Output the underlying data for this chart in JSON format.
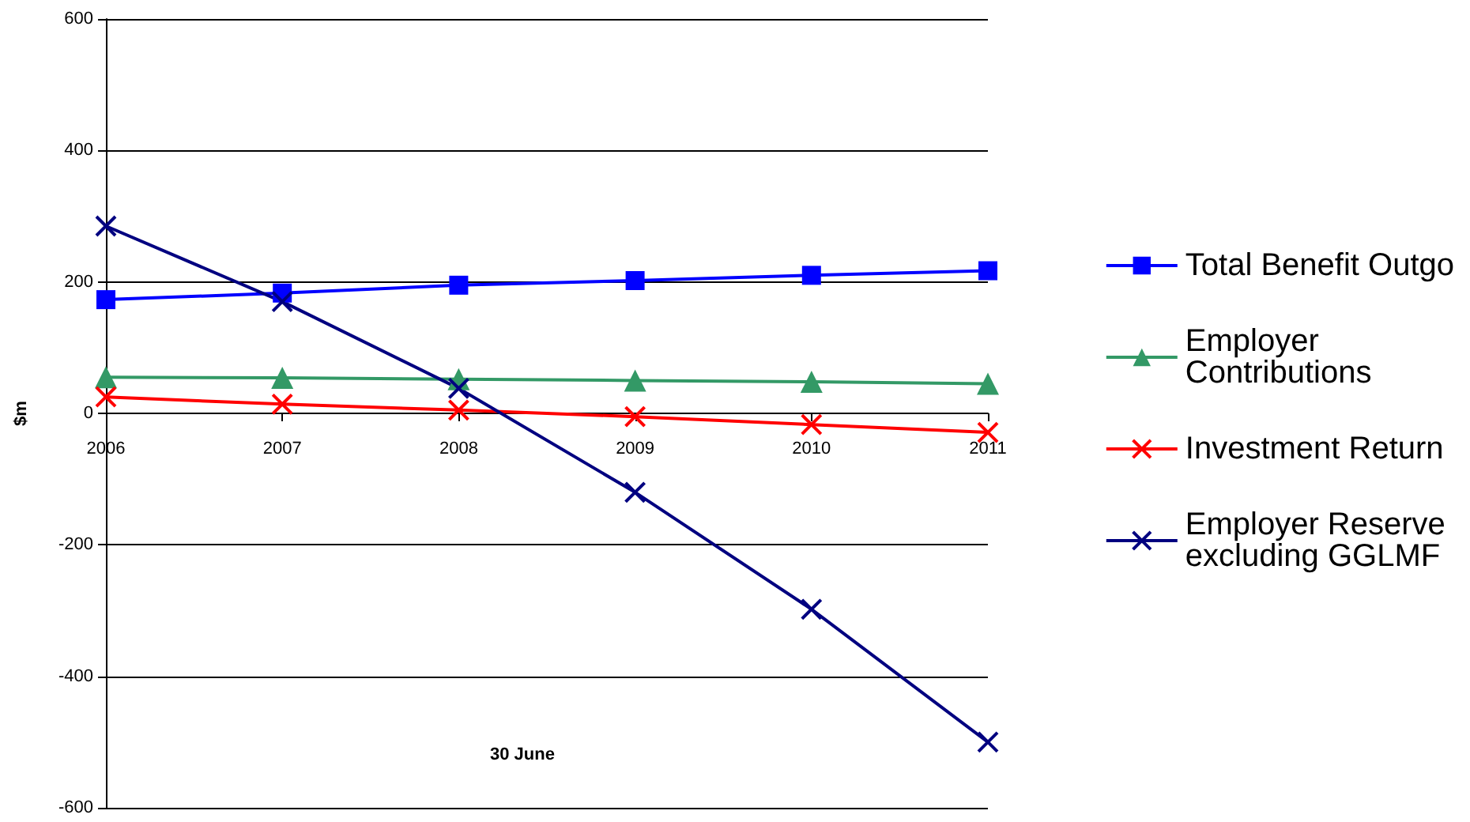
{
  "chart_data": {
    "type": "line",
    "xlabel": "30 June",
    "ylabel": "$m",
    "categories": [
      "2006",
      "2007",
      "2008",
      "2009",
      "2010",
      "2011"
    ],
    "series": [
      {
        "name": "Total Benefit Outgo",
        "color": "#0000ff",
        "marker": "square",
        "values": [
          173,
          183,
          195,
          202,
          210,
          217
        ]
      },
      {
        "name": "Employer Contributions",
        "color": "#339966",
        "marker": "triangle",
        "values": [
          55,
          54,
          52,
          50,
          48,
          45
        ]
      },
      {
        "name": "Investment Return",
        "color": "#ff0000",
        "marker": "cross",
        "values": [
          25,
          14,
          5,
          -5,
          -17,
          -29
        ]
      },
      {
        "name": "Employer Reserve excluding GGLMF",
        "color": "#000080",
        "marker": "cross",
        "values": [
          285,
          170,
          38,
          -120,
          -298,
          -500
        ]
      }
    ],
    "ylim": [
      -600,
      600
    ],
    "yticks": [
      -600,
      -400,
      -200,
      0,
      200,
      400,
      600
    ],
    "grid": "y",
    "legend": "right",
    "line_style": "solid"
  }
}
